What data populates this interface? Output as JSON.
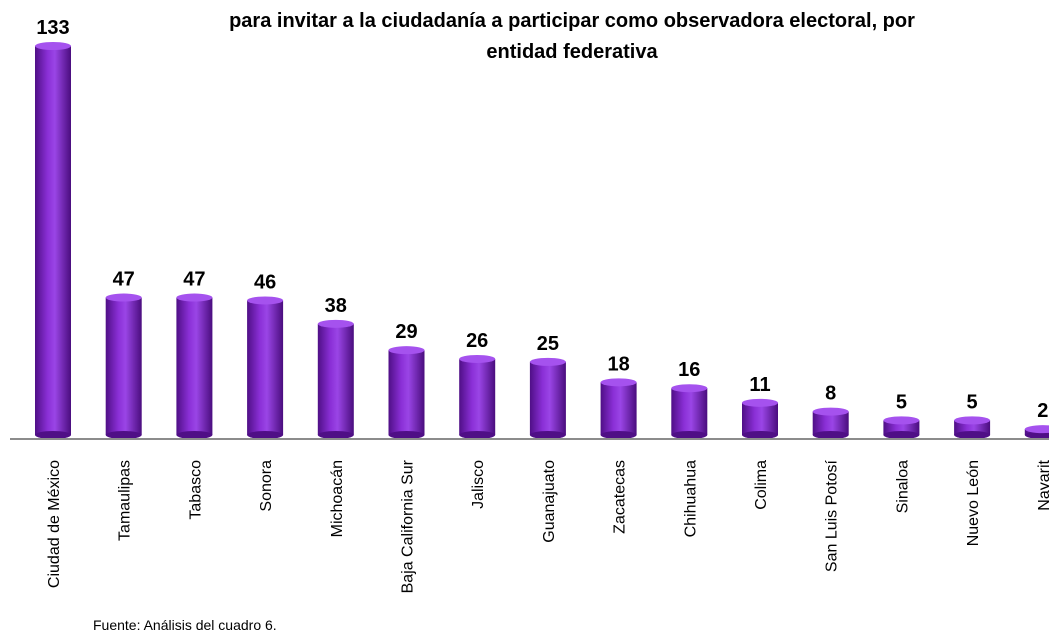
{
  "chart_data": {
    "type": "bar",
    "title_lines": [
      "para invitar a la ciudadanía a participar como observadora electoral, por",
      "entidad federativa"
    ],
    "categories": [
      "Ciudad de México",
      "Tamaulipas",
      "Tabasco",
      "Sonora",
      "Michoacán",
      "Baja California Sur",
      "Jalisco",
      "Guanajuato",
      "Zacatecas",
      "Chihuahua",
      "Colima",
      "San Luis Potosí",
      "Sinaloa",
      "Nuevo León",
      "Nayarit"
    ],
    "values": [
      133,
      47,
      47,
      46,
      38,
      29,
      26,
      25,
      18,
      16,
      11,
      8,
      5,
      5,
      2
    ],
    "value_labels": [
      "133",
      "47",
      "47",
      "46",
      "38",
      "29",
      "26",
      "25",
      "18",
      "16",
      "11",
      "8",
      "5",
      "5",
      "2"
    ],
    "xlabel": "",
    "ylabel": "",
    "ylim": [
      0,
      133
    ],
    "grid": false,
    "legend": "none",
    "bar_color": "#7a1fc4",
    "bar_color_dark": "#4f0f86",
    "bar_color_light": "#a552ee"
  },
  "source_note": "Fuente: Análisis del cuadro 6."
}
